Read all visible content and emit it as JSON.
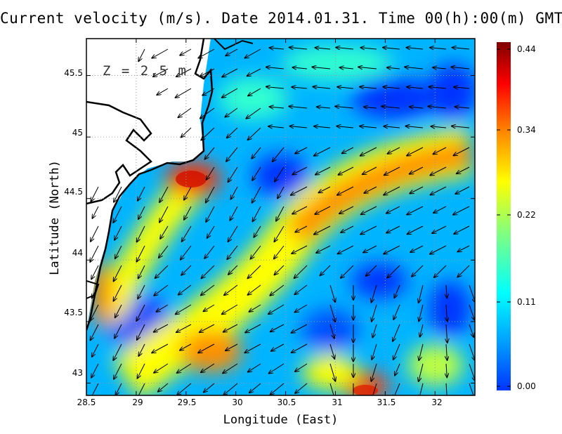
{
  "title": "Current velocity (m/s). Date 2014.01.31. Time 00(h):00(m) GMT",
  "depth_label": "Z = 2.5 m",
  "x_axis": {
    "label": "Longitude (East)",
    "ticks": [
      "28.5",
      "29",
      "29.5",
      "30",
      "30.5",
      "31",
      "31.5",
      "32"
    ],
    "range": [
      28.5,
      32.4
    ]
  },
  "y_axis": {
    "label": "Latitude (North)",
    "ticks": [
      "43",
      "43.5",
      "44",
      "44.5",
      "45",
      "45.5"
    ],
    "range": [
      42.9,
      45.8
    ]
  },
  "colorbar": {
    "ticks": [
      "0.44",
      "0.34",
      "0.22",
      "0.11",
      "0.00"
    ],
    "range": [
      0.0,
      0.44
    ],
    "colors": [
      "#0033ff",
      "#00a0ff",
      "#00ffff",
      "#80ff80",
      "#ffff00",
      "#ff8000",
      "#ff0000",
      "#800000"
    ]
  },
  "grid": "dotted",
  "land_color": "#ffffff",
  "coastline_color": "#000000"
}
